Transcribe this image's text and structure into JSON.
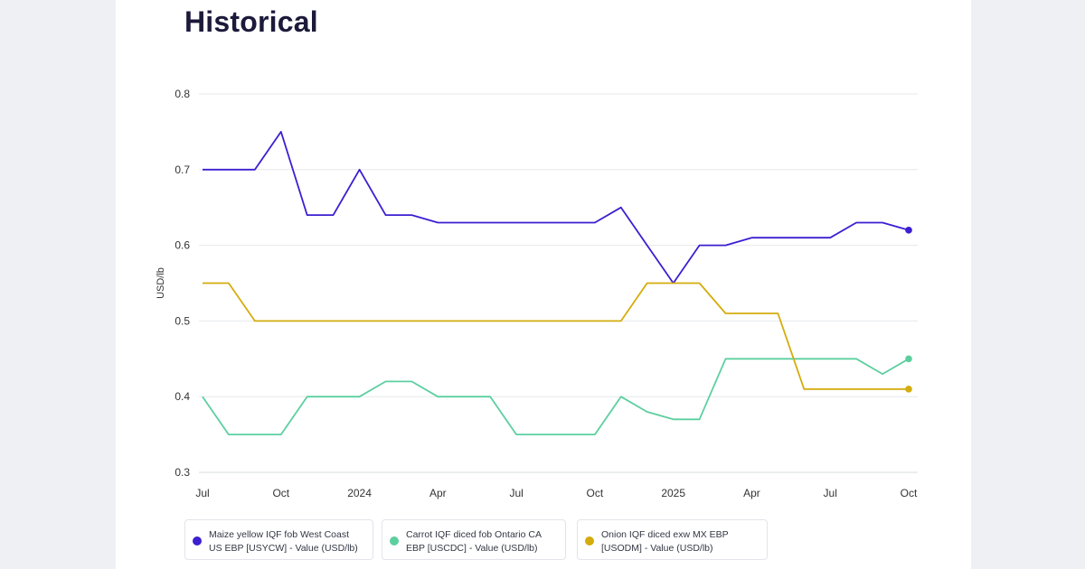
{
  "page": {
    "title": "Historical"
  },
  "chart_data": {
    "type": "line",
    "title": "Historical",
    "xlabel": "",
    "ylabel": "USD/lb",
    "ylim": [
      0.3,
      0.8
    ],
    "yticks": [
      "0.3",
      "0.4",
      "0.5",
      "0.6",
      "0.7",
      "0.8"
    ],
    "x_tick_labels": [
      "Jul",
      "Oct",
      "2024",
      "Apr",
      "Jul",
      "Oct",
      "2025",
      "Apr",
      "Jul",
      "Oct"
    ],
    "x": [
      "2023-07",
      "2023-08",
      "2023-09",
      "2023-10",
      "2023-11",
      "2023-12",
      "2024-01",
      "2024-02",
      "2024-03",
      "2024-04",
      "2024-05",
      "2024-06",
      "2024-07",
      "2024-08",
      "2024-09",
      "2024-10",
      "2024-11",
      "2024-12",
      "2025-01",
      "2025-02",
      "2025-03",
      "2025-04",
      "2025-05",
      "2025-06",
      "2025-07",
      "2025-08",
      "2025-09",
      "2025-10"
    ],
    "grid": true,
    "legend_position": "bottom",
    "series": [
      {
        "name": "Maize yellow IQF fob West Coast US EBP [USYCW] - Value (USD/lb)",
        "color": "#3b1fd1",
        "values": [
          0.7,
          0.7,
          0.7,
          0.75,
          0.64,
          0.64,
          0.7,
          0.64,
          0.64,
          0.63,
          0.63,
          0.63,
          0.63,
          0.63,
          0.63,
          0.63,
          0.65,
          0.6,
          0.55,
          0.6,
          0.6,
          0.61,
          0.61,
          0.61,
          0.61,
          0.63,
          0.63,
          0.62
        ]
      },
      {
        "name": "Carrot IQF diced fob Ontario CA EBP [USCDC] - Value (USD/lb)",
        "color": "#5ccf9f",
        "values": [
          0.4,
          0.35,
          0.35,
          0.35,
          0.4,
          0.4,
          0.4,
          0.42,
          0.42,
          0.4,
          0.4,
          0.4,
          0.35,
          0.35,
          0.35,
          0.35,
          0.4,
          0.38,
          0.37,
          0.37,
          0.45,
          0.45,
          0.45,
          0.45,
          0.45,
          0.45,
          0.43,
          0.45
        ]
      },
      {
        "name": "Onion IQF diced exw MX EBP [USODM] - Value (USD/lb)",
        "color": "#d4ac0d",
        "values": [
          0.55,
          0.55,
          0.5,
          0.5,
          0.5,
          0.5,
          0.5,
          0.5,
          0.5,
          0.5,
          0.5,
          0.5,
          0.5,
          0.5,
          0.5,
          0.5,
          0.5,
          0.55,
          0.55,
          0.55,
          0.51,
          0.51,
          0.51,
          0.41,
          0.41,
          0.41,
          0.41,
          0.41
        ]
      }
    ]
  },
  "legend": {
    "items": [
      {
        "line1": "Maize yellow IQF fob West Coast",
        "line2": "US EBP [USYCW] - Value (USD/lb)",
        "color": "#3b1fd1"
      },
      {
        "line1": "Carrot IQF diced fob Ontario CA",
        "line2": "EBP [USCDC] - Value (USD/lb)",
        "color": "#5ccf9f"
      },
      {
        "line1": "Onion IQF diced exw MX EBP",
        "line2": "[USODM] - Value (USD/lb)",
        "color": "#d4ac0d"
      }
    ]
  }
}
